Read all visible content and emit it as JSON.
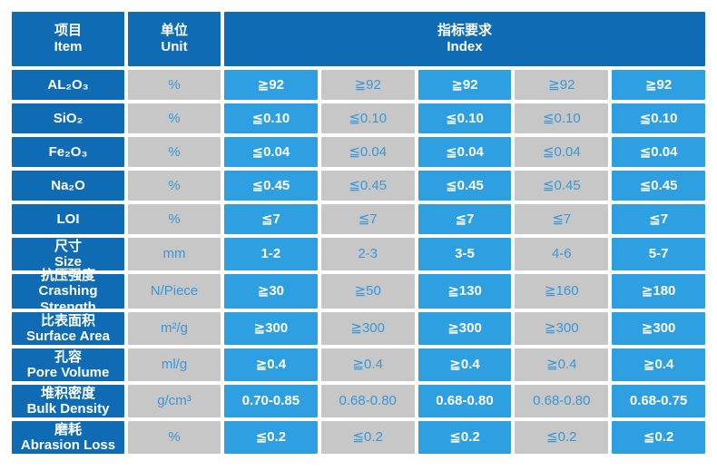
{
  "colors": {
    "dark_blue": "#0f6cb4",
    "bright_blue": "#2e9fe0",
    "gray": "#c7c7c7",
    "blue_text": "#3a97d8",
    "white_text": "#ffffff"
  },
  "table": {
    "headers": {
      "item": "项目\nItem",
      "unit": "单位\nUnit",
      "index": "指标要求\nIndex"
    },
    "rows": [
      {
        "item": "AL₂O₃",
        "unit": "%",
        "values": [
          "≧92",
          "≧92",
          "≧92",
          "≧92",
          "≧92"
        ]
      },
      {
        "item": "SiO₂",
        "unit": "%",
        "values": [
          "≦0.10",
          "≦0.10",
          "≦0.10",
          "≦0.10",
          "≦0.10"
        ]
      },
      {
        "item": "Fe₂O₃",
        "unit": "%",
        "values": [
          "≦0.04",
          "≦0.04",
          "≦0.04",
          "≦0.04",
          "≦0.04"
        ]
      },
      {
        "item": "Na₂O",
        "unit": "%",
        "values": [
          "≦0.45",
          "≦0.45",
          "≦0.45",
          "≦0.45",
          "≦0.45"
        ]
      },
      {
        "item": "LOI",
        "unit": "%",
        "values": [
          "≦7",
          "≦7",
          "≦7",
          "≦7",
          "≦7"
        ]
      },
      {
        "item": "尺寸\nSize",
        "unit": "mm",
        "values": [
          "1-2",
          "2-3",
          "3-5",
          "4-6",
          "5-7"
        ]
      },
      {
        "item": "抗压强度\nCrashing Strength",
        "unit": "N/Piece",
        "values": [
          "≧30",
          "≧50",
          "≧130",
          "≧160",
          "≧180"
        ]
      },
      {
        "item": "比表面积\nSurface Area",
        "unit": "m²/g",
        "values": [
          "≧300",
          "≧300",
          "≧300",
          "≧300",
          "≧300"
        ]
      },
      {
        "item": "孔容\nPore Volume",
        "unit": "ml/g",
        "values": [
          "≧0.4",
          "≧0.4",
          "≧0.4",
          "≧0.4",
          "≧0.4"
        ]
      },
      {
        "item": "堆积密度\nBulk Density",
        "unit": "g/cm³",
        "values": [
          "0.70-0.85",
          "0.68-0.80",
          "0.68-0.80",
          "0.68-0.80",
          "0.68-0.75"
        ]
      },
      {
        "item": "磨耗\nAbrasion Loss",
        "unit": "%",
        "values": [
          "≦0.2",
          "≦0.2",
          "≦0.2",
          "≦0.2",
          "≦0.2"
        ]
      }
    ]
  }
}
